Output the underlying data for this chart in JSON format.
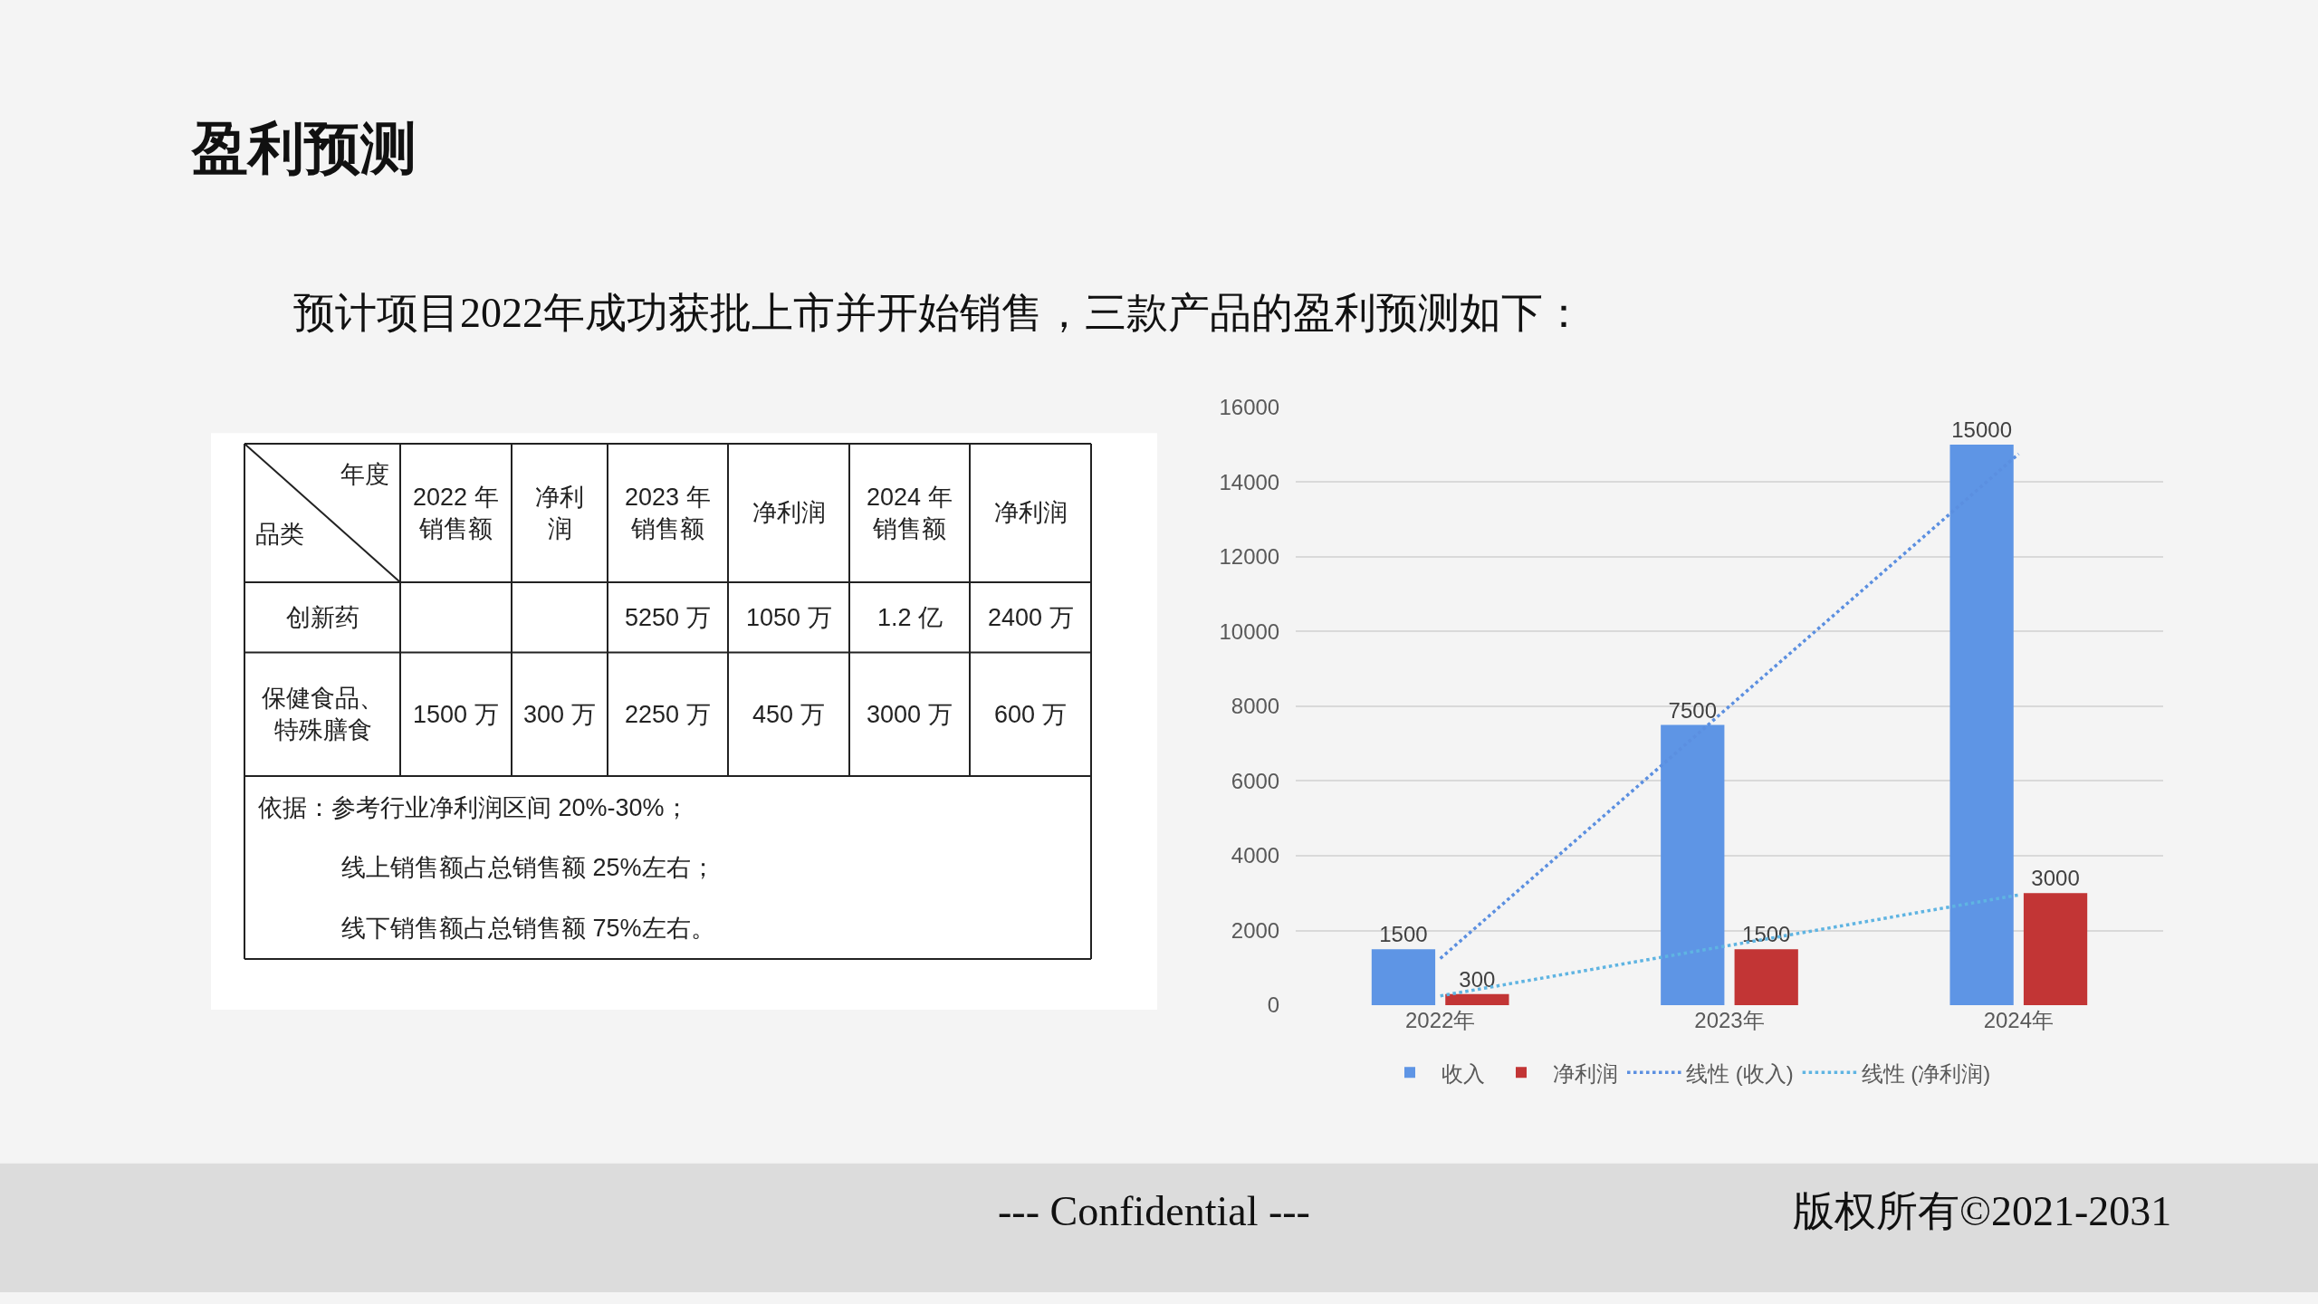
{
  "chart_data": [
    {
      "type": "other",
      "title": "盈利预测",
      "subtitle": "预计项目2022年成功获批上市并开始销售，三款产品的盈利预测如下：",
      "xlabel": "年度",
      "ylabel": "品类",
      "categories": [
        "2022 年销售额",
        "净利润",
        "2023 年销售额",
        "净利润",
        "2024 年销售额",
        "净利润"
      ],
      "y_categories": [
        "创新药",
        "保健食品、特殊膳食"
      ],
      "cell_labels": [
        [
          null,
          null,
          "5250 万",
          "1050 万",
          "1.2 亿",
          "2400 万"
        ],
        [
          "1500 万",
          "300 万",
          "2250 万",
          "450 万",
          "3000 万",
          "600 万"
        ]
      ],
      "annotations": [
        "依据：参考行业净利润区间 20%-30%；",
        "线上销售额占总销售额 25%左右；",
        "线下销售额占总销售额 75%左右。"
      ]
    },
    {
      "type": "bar",
      "categories": [
        "2022年",
        "2023年",
        "2024年"
      ],
      "series": [
        {
          "name": "收入",
          "color": "#5e95e5",
          "values": [
            1500,
            7500,
            15000
          ],
          "value_labels": [
            "1500",
            "7500",
            "15000"
          ]
        },
        {
          "name": "净利润",
          "color": "#c23535",
          "values": [
            300,
            1500,
            3000
          ],
          "value_labels": [
            "300",
            "1500",
            "3000"
          ]
        },
        {
          "name": "线性 (收入)",
          "type": "line",
          "color": "#5b8fe0",
          "line_style": "dotted",
          "values": [
            1250,
            8000,
            14750
          ]
        },
        {
          "name": "线性 (净利润)",
          "type": "line",
          "color": "#5fb4e2",
          "line_style": "dotted",
          "values": [
            250,
            1600,
            2950
          ]
        }
      ],
      "ylim": [
        0,
        16000
      ],
      "yticks": [
        0,
        2000,
        4000,
        6000,
        8000,
        10000,
        12000,
        14000,
        16000
      ],
      "grid": "y",
      "legend": "bottom",
      "annotations": [
        "--- Confidential ---",
        "版权所有©2021-2031"
      ]
    }
  ]
}
